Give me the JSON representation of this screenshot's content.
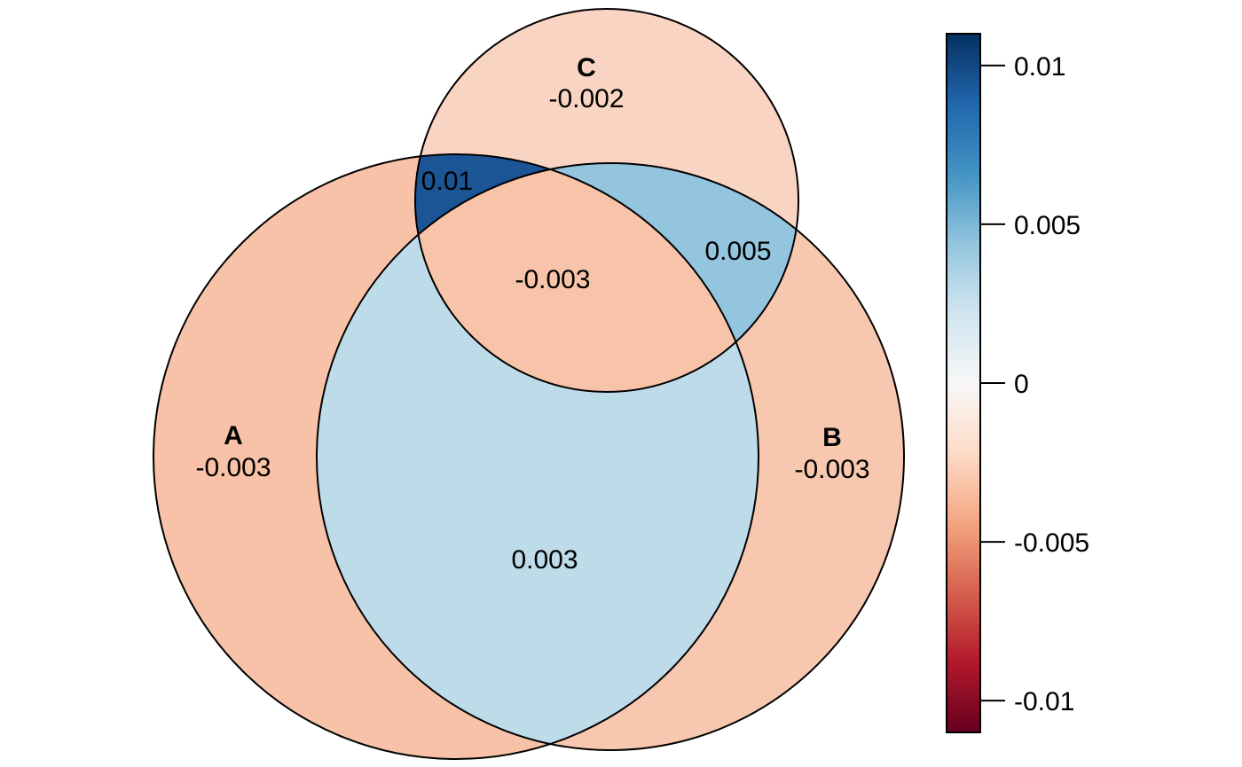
{
  "sets": {
    "A": {
      "label": "A"
    },
    "B": {
      "label": "B"
    },
    "C": {
      "label": "C"
    }
  },
  "regions": {
    "A_only": {
      "value": "-0.003",
      "fill": "#f7c2a7"
    },
    "B_only": {
      "value": "-0.003",
      "fill": "#f7c7af"
    },
    "C_only": {
      "value": "-0.002",
      "fill": "#f9d4c2"
    },
    "AB": {
      "value": "0.003",
      "fill": "#bedbea"
    },
    "AC": {
      "value": "0.01",
      "fill": "#1b5596"
    },
    "BC": {
      "value": "0.005",
      "fill": "#94c5df"
    },
    "ABC": {
      "value": "-0.003",
      "fill": "#f7c4aa"
    }
  },
  "colorbar": {
    "min": -0.011,
    "max": 0.011,
    "ticks": [
      {
        "value": 0.01,
        "label": "0.01"
      },
      {
        "value": 0.005,
        "label": "0.005"
      },
      {
        "value": 0,
        "label": "0"
      },
      {
        "value": -0.005,
        "label": "-0.005"
      },
      {
        "value": -0.01,
        "label": "-0.01"
      }
    ],
    "stops": [
      "#053061",
      "#2166ac",
      "#4393c3",
      "#92c5de",
      "#d1e5f0",
      "#f7f7f7",
      "#fddbc7",
      "#f4a582",
      "#d6604d",
      "#b2182b",
      "#67001f"
    ]
  }
}
